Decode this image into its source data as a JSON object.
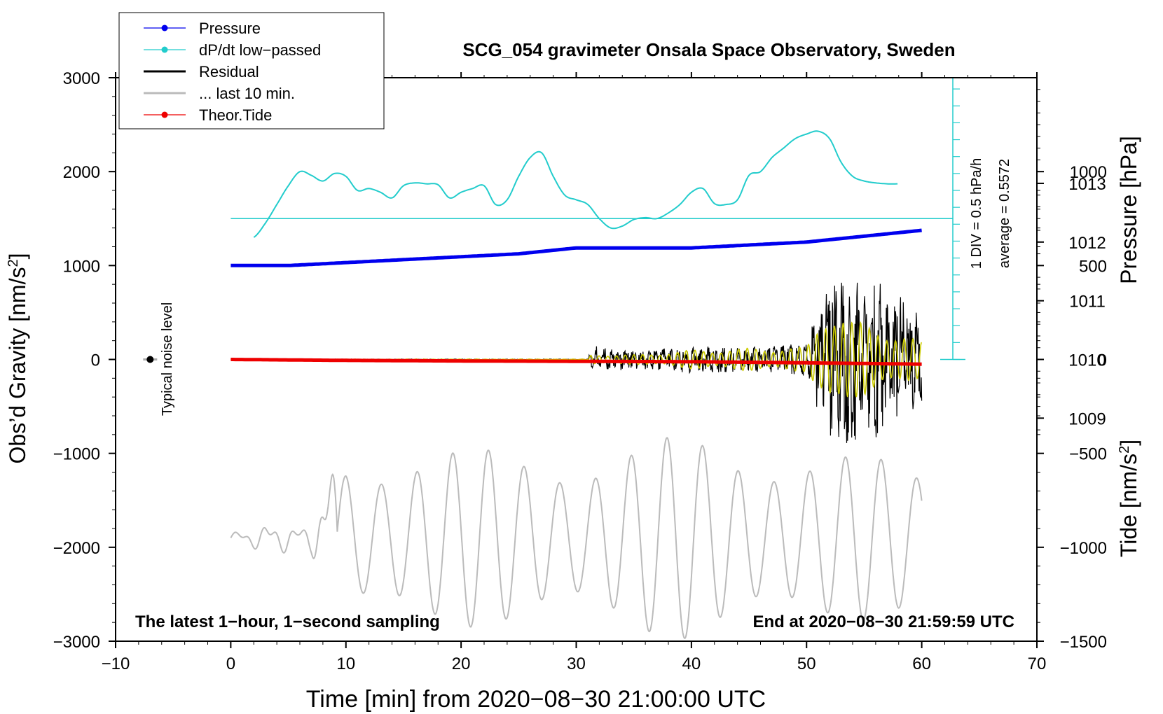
{
  "chart_data": {
    "type": "line",
    "title": "SCG_054 gravimeter Onsala Space Observatory, Sweden",
    "xlabel": "Time [min] from 2020−08−30 21:00:00 UTC",
    "ylabel_main": "Obs’d Gravity [nm/s",
    "ylabel_sup": "2",
    "ylabel_main_end": "]",
    "ylabel_pressure": "Pressure [hPa]",
    "ylabel_tide": "Tide [nm/s",
    "ylabel_tide_sup": "2",
    "ylabel_tide_end": "]",
    "xlim": [
      -10,
      70
    ],
    "ylim": [
      -3000,
      3000
    ],
    "x_ticks": [
      -10,
      0,
      10,
      20,
      30,
      40,
      50,
      60,
      70
    ],
    "x_tick_labels": [
      "−10",
      "0",
      "10",
      "20",
      "30",
      "40",
      "50",
      "60",
      "70"
    ],
    "y_ticks": [
      3000,
      2000,
      1000,
      0,
      -1000,
      -2000,
      -3000
    ],
    "y_tick_labels": [
      "3000",
      "2000",
      "1000",
      "0",
      "−1000",
      "−2000",
      "−3000"
    ],
    "pressure_ticks": [
      1013,
      1012,
      1011,
      1010,
      1009
    ],
    "pressure_tick_labels": [
      "1013",
      "1012",
      "1011",
      "1010",
      "1009"
    ],
    "tide_ticks": [
      1000,
      500,
      0,
      -500,
      -1000,
      -1500
    ],
    "tide_tick_labels": [
      "1000",
      "500",
      "0",
      "−500",
      "−1000",
      "−1500"
    ],
    "legend": [
      {
        "label": "Pressure",
        "color": "#0000ee",
        "marker": true
      },
      {
        "label": "dP/dt low−passed",
        "color": "#22cccc",
        "marker": true
      },
      {
        "label": "Residual",
        "color": "#000000",
        "marker": false
      },
      {
        "label": "... last 10 min.",
        "color": "#bbbbbb",
        "marker": false
      },
      {
        "label": "Theor.Tide",
        "color": "#ee0000",
        "marker": true
      }
    ],
    "legend_position": "top-left",
    "annotations": {
      "bottom_left": "The latest 1−hour, 1−second sampling",
      "bottom_right": "End at 2020−08−30 21:59:59 UTC",
      "div_label": "1 DIV = 0.5 hPa/h",
      "average_label": "average = 0.5572",
      "noise_label": "Typical noise level"
    },
    "pressure_series": {
      "name": "Pressure",
      "color": "#0000ee",
      "x": [
        0,
        5,
        10,
        15,
        20,
        25,
        30,
        35,
        40,
        45,
        50,
        55,
        60
      ],
      "y": [
        1011.6,
        1011.6,
        1011.65,
        1011.7,
        1011.75,
        1011.8,
        1011.9,
        1011.9,
        1011.9,
        1011.95,
        1012.0,
        1012.1,
        1012.2
      ]
    },
    "dpdt_series": {
      "name": "dP/dt low-passed",
      "color": "#22cccc",
      "x": [
        2,
        3,
        4,
        5,
        6,
        7,
        8,
        9,
        10,
        11,
        12,
        13,
        14,
        15,
        16,
        17,
        18,
        19,
        20,
        21,
        22,
        23,
        24,
        25,
        26,
        27,
        28,
        29,
        30,
        31,
        32,
        33,
        34,
        35,
        36,
        37,
        38,
        39,
        40,
        41,
        42,
        43,
        44,
        45,
        46,
        47,
        48,
        49,
        50,
        51,
        52,
        53,
        54,
        55,
        56,
        57,
        58
      ],
      "y": [
        1300,
        1450,
        1650,
        1850,
        2000,
        1960,
        1900,
        1980,
        1950,
        1800,
        1820,
        1780,
        1720,
        1850,
        1880,
        1870,
        1860,
        1720,
        1780,
        1820,
        1850,
        1650,
        1700,
        1950,
        2150,
        2200,
        1950,
        1750,
        1700,
        1650,
        1500,
        1400,
        1420,
        1490,
        1510,
        1500,
        1560,
        1650,
        1780,
        1820,
        1660,
        1650,
        1700,
        1960,
        2000,
        2150,
        2250,
        2350,
        2400,
        2430,
        2350,
        2100,
        1950,
        1900,
        1880,
        1870,
        1870
      ]
    },
    "average_line": {
      "y": 1500,
      "x": [
        0,
        62.7
      ]
    },
    "residual_series": {
      "name": "Residual",
      "color": "#000000",
      "x": [
        0,
        10,
        20,
        31,
        31.3,
        35,
        40,
        45,
        50,
        51.5,
        52,
        54,
        56,
        58,
        60
      ],
      "amplitude": [
        5,
        5,
        5,
        5,
        150,
        100,
        150,
        150,
        180,
        800,
        950,
        900,
        900,
        700,
        500
      ]
    },
    "filtered_series": {
      "name": "Residual filtered",
      "color": "#cccc00",
      "x": [
        0,
        31,
        31.3,
        35,
        40,
        45,
        50,
        51.5,
        52,
        54,
        56,
        58,
        60
      ],
      "amplitude": [
        3,
        3,
        60,
        50,
        100,
        120,
        130,
        500,
        600,
        400,
        400,
        250,
        200
      ]
    },
    "last10_series": {
      "name": "... last 10 min.",
      "color": "#bbbbbb",
      "x": [
        0,
        1,
        2,
        3,
        4,
        5,
        6,
        7,
        8,
        9,
        10,
        20,
        30,
        40,
        50,
        60
      ],
      "baseline": -1900,
      "amplitude": [
        80,
        100,
        150,
        200,
        200,
        200,
        150,
        220,
        700,
        850,
        950,
        950,
        950,
        1100,
        950,
        800
      ],
      "period_min": 3.1,
      "start_min": 9.2
    },
    "tide_series": {
      "name": "Theor.Tide",
      "color": "#ee0000",
      "x": [
        0,
        10,
        20,
        30,
        40,
        50,
        60
      ],
      "y": [
        0,
        -5,
        -8,
        -10,
        -12,
        -18,
        -25
      ]
    },
    "pressure_axis_range": [
      1005.2,
      1014.8
    ],
    "tide_axis_range": [
      -1500,
      1500
    ],
    "cyan_scale": {
      "x": 62.7,
      "y_bottom": 0,
      "y_top": 3000,
      "div": 180
    },
    "noise_point": {
      "x": -7,
      "y": 0
    }
  }
}
